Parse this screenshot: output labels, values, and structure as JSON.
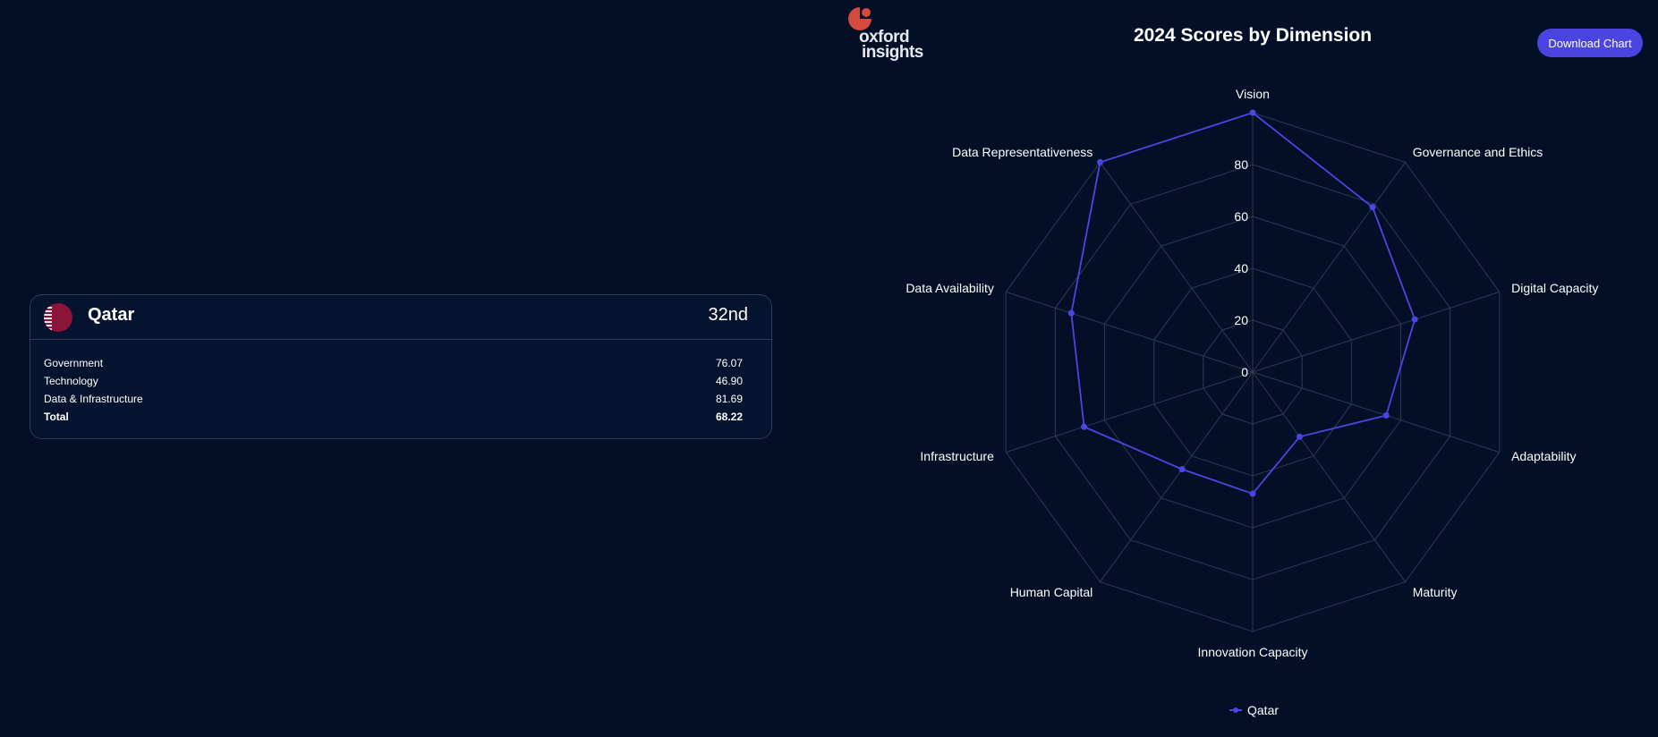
{
  "header": {
    "logo_line1": "oxford",
    "logo_line2": "insights",
    "download_label": "Download Chart"
  },
  "country_card": {
    "name": "Qatar",
    "rank": "32nd",
    "rows": [
      {
        "label": "Government",
        "value": "76.07"
      },
      {
        "label": "Technology",
        "value": "46.90"
      },
      {
        "label": "Data & Infrastructure",
        "value": "81.69"
      },
      {
        "label": "Total",
        "value": "68.22"
      }
    ]
  },
  "colors": {
    "background": "#020f27",
    "series": "#4b46e3",
    "grid": "#2b3a55",
    "logo": "#d24b3e",
    "button": "#4a45e0"
  },
  "chart_data": {
    "type": "radar",
    "title": "2024 Scores by Dimension",
    "categories": [
      "Vision",
      "Governance and Ethics",
      "Digital Capacity",
      "Adaptability",
      "Maturity",
      "Innovation Capacity",
      "Human Capital",
      "Infrastructure",
      "Data Availability",
      "Data Representativeness"
    ],
    "series": [
      {
        "name": "Qatar",
        "values": [
          100,
          78.6,
          65.7,
          54.1,
          30.8,
          46.9,
          46.3,
          68.3,
          73.5,
          100
        ]
      }
    ],
    "rticks": [
      "0",
      "20",
      "40",
      "60",
      "80"
    ],
    "rlim": [
      0,
      100
    ],
    "grid": true,
    "legend": "bottom"
  }
}
